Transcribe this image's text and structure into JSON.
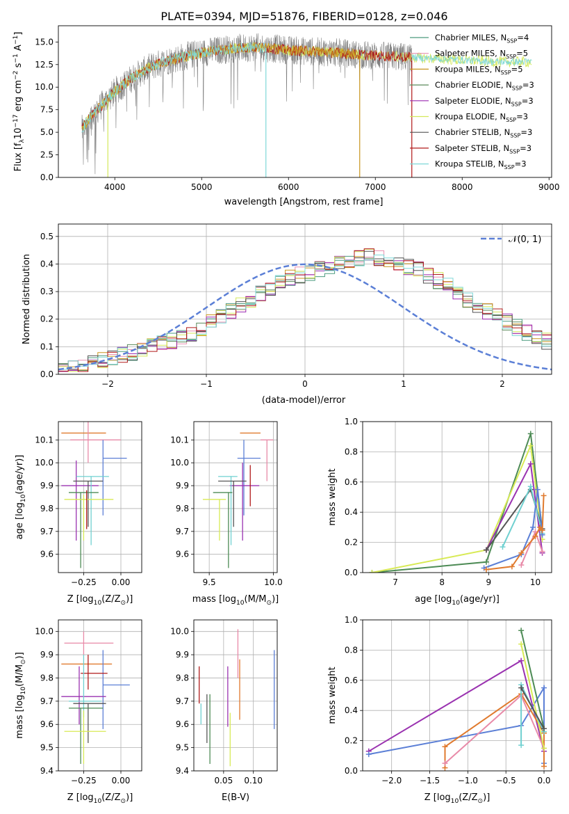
{
  "colors": {
    "Chabrier MILES": "#4a9b7e",
    "Salpeter MILES": "#e88fb0",
    "Kroupa MILES": "#c8951e",
    "Chabrier ELODIE": "#5a8a5a",
    "Salpeter ELODIE": "#9a28b0",
    "Kroupa ELODIE": "#d4e85a",
    "Chabrier STELIB": "#505050",
    "Salpeter STELIB": "#b01818",
    "Kroupa STELIB": "#7fd8d8",
    "data": "#808080",
    "blue": "#5b7fd6",
    "orange": "#e07a2e",
    "green": "#4d8b55",
    "purple": "#9a32b0",
    "yellow": "#d8ea55",
    "cyan": "#6fd0d0",
    "pink": "#e88aa8",
    "red": "#b01a1a",
    "gray": "#555555"
  },
  "chart_data": [
    {
      "type": "line",
      "title": "PLATE=0394, MJD=51876, FIBERID=0128, z=0.046",
      "xlabel": "wavelength [Angstrom, rest frame]",
      "ylabel_parts": [
        "Flux [f",
        "λ",
        "10",
        "−17",
        " erg cm",
        "−2",
        " s",
        "−1",
        " A",
        "−1",
        "]"
      ],
      "xlim": [
        3350,
        9030
      ],
      "ylim": [
        0,
        16.8
      ],
      "xticks": [
        "4000",
        "5000",
        "6000",
        "7000",
        "8000",
        "9000"
      ],
      "yticks": [
        "0.0",
        "2.5",
        "5.0",
        "7.5",
        "10.0",
        "12.5",
        "15.0"
      ],
      "legend_position": "upper right",
      "legend": [
        {
          "text": "Chabrier MILES, N",
          "sub": "SSP",
          "suffix": "=4"
        },
        {
          "text": "Salpeter MILES, N",
          "sub": "SSP",
          "suffix": "=5"
        },
        {
          "text": "Kroupa MILES, N",
          "sub": "SSP",
          "suffix": "=5"
        },
        {
          "text": "Chabrier ELODIE, N",
          "sub": "SSP",
          "suffix": "=3"
        },
        {
          "text": "Salpeter ELODIE, N",
          "sub": "SSP",
          "suffix": "=3"
        },
        {
          "text": "Kroupa ELODIE, N",
          "sub": "SSP",
          "suffix": "=3"
        },
        {
          "text": "Chabrier STELIB, N",
          "sub": "SSP",
          "suffix": "=3"
        },
        {
          "text": "Salpeter STELIB, N",
          "sub": "SSP",
          "suffix": "=3"
        },
        {
          "text": "Kroupa STELIB, N",
          "sub": "SSP",
          "suffix": "=3"
        }
      ],
      "continuum": [
        [
          3600,
          5.0
        ],
        [
          3700,
          6.5
        ],
        [
          3800,
          7.5
        ],
        [
          3900,
          8.5
        ],
        [
          4000,
          9.5
        ],
        [
          4100,
          10.3
        ],
        [
          4200,
          11.0
        ],
        [
          4300,
          11.6
        ],
        [
          4400,
          12.2
        ],
        [
          4600,
          12.9
        ],
        [
          4800,
          13.4
        ],
        [
          5000,
          13.8
        ],
        [
          5200,
          14.1
        ],
        [
          5400,
          14.3
        ],
        [
          5600,
          14.4
        ],
        [
          5800,
          14.3
        ],
        [
          6000,
          14.1
        ],
        [
          6200,
          14.0
        ],
        [
          6400,
          13.9
        ],
        [
          6600,
          13.8
        ],
        [
          6800,
          13.6
        ],
        [
          7000,
          13.5
        ],
        [
          7200,
          13.4
        ],
        [
          7400,
          13.3
        ],
        [
          7600,
          13.2
        ],
        [
          7800,
          13.1
        ],
        [
          8000,
          13.0
        ],
        [
          8200,
          12.9
        ],
        [
          8400,
          12.8
        ],
        [
          8600,
          12.8
        ],
        [
          8800,
          12.8
        ]
      ],
      "data_range": [
        3620,
        7420
      ],
      "model_end": [
        8800,
        7420,
        6820,
        5740,
        3920
      ],
      "drop_lines": [
        [
          3920,
          "Kroupa ELODIE"
        ],
        [
          5740,
          "Kroupa STELIB"
        ],
        [
          6820,
          "Kroupa MILES"
        ],
        [
          7420,
          "Salpeter STELIB"
        ]
      ]
    },
    {
      "type": "histogram",
      "xlabel": "(data-model)/error",
      "ylabel": "Normed distribution",
      "xlim": [
        -2.5,
        2.5
      ],
      "ylim": [
        0,
        0.545
      ],
      "xticks": [
        "−2",
        "−1",
        "0",
        "1",
        "2"
      ],
      "yticks": [
        "0.0",
        "0.1",
        "0.2",
        "0.3",
        "0.4",
        "0.5"
      ],
      "bin_width": 0.1,
      "legend": [
        "𝒩(0, 1)"
      ],
      "base_hist": [
        0.02,
        0.03,
        0.03,
        0.04,
        0.05,
        0.06,
        0.07,
        0.08,
        0.09,
        0.1,
        0.11,
        0.12,
        0.14,
        0.15,
        0.17,
        0.19,
        0.21,
        0.23,
        0.25,
        0.27,
        0.29,
        0.31,
        0.33,
        0.35,
        0.36,
        0.37,
        0.38,
        0.39,
        0.4,
        0.41,
        0.42,
        0.43,
        0.42,
        0.41,
        0.4,
        0.39,
        0.38,
        0.36,
        0.34,
        0.32,
        0.3,
        0.27,
        0.25,
        0.23,
        0.21,
        0.19,
        0.17,
        0.15,
        0.13,
        0.12,
        0.1,
        0.09,
        0.08,
        0.07,
        0.06,
        0.05,
        0.04,
        0.035,
        0.03,
        0.025
      ]
    },
    {
      "type": "errorbar",
      "xlabel_parts": [
        "Z [log",
        "10",
        "(Z/Z",
        "⊙",
        ")]"
      ],
      "ylabel_parts": [
        "age  [log",
        "10",
        "(age/yr)]"
      ],
      "xlim": [
        -0.42,
        0.14
      ],
      "ylim": [
        9.52,
        10.18
      ],
      "xticks": [
        "−0.25",
        "0.00"
      ],
      "yticks": [
        "9.6",
        "9.7",
        "9.8",
        "9.9",
        "10.0",
        "10.1"
      ],
      "points": [
        {
          "c": "orange",
          "x": -0.25,
          "xe": [
            0.15,
            0.15
          ],
          "y": 10.13,
          "ye": [
            0.0,
            0.0
          ]
        },
        {
          "c": "pink",
          "x": -0.22,
          "xe": [
            0.12,
            0.22
          ],
          "y": 10.1,
          "ye": [
            0.1,
            0.1
          ]
        },
        {
          "c": "blue",
          "x": -0.12,
          "xe": [
            0.0,
            0.16
          ],
          "y": 10.02,
          "ye": [
            0.25,
            0.08
          ]
        },
        {
          "c": "purple",
          "x": -0.3,
          "xe": [
            0.1,
            0.15
          ],
          "y": 9.9,
          "ye": [
            0.24,
            0.11
          ]
        },
        {
          "c": "cyan",
          "x": -0.2,
          "xe": [
            0.1,
            0.12
          ],
          "y": 9.94,
          "ye": [
            0.3,
            0.0
          ]
        },
        {
          "c": "gray",
          "x": -0.22,
          "xe": [
            0.1,
            0.1
          ],
          "y": 9.92,
          "ye": [
            0.2,
            0.0
          ]
        },
        {
          "c": "green",
          "x": -0.27,
          "xe": [
            0.08,
            0.12
          ],
          "y": 9.87,
          "ye": [
            0.33,
            0.0
          ]
        },
        {
          "c": "yellow",
          "x": -0.25,
          "xe": [
            0.13,
            0.2
          ],
          "y": 9.84,
          "ye": [
            0.18,
            0.02
          ]
        },
        {
          "c": "red",
          "x": -0.23,
          "xe": [
            0.0,
            0.0
          ],
          "y": 9.8,
          "ye": [
            0.09,
            0.08
          ]
        }
      ]
    },
    {
      "type": "errorbar",
      "xlabel_parts": [
        "mass [log",
        "10",
        "(M/M",
        "⊙",
        ")]"
      ],
      "xlim": [
        9.38,
        10.03
      ],
      "ylim": [
        9.52,
        10.18
      ],
      "xticks": [
        "9.5",
        "10.0"
      ],
      "yticks": [
        "9.6",
        "9.7",
        "9.8",
        "9.9",
        "10.0",
        "10.1"
      ],
      "points": [
        {
          "c": "orange",
          "x": 9.84,
          "xe": [
            0.1,
            0.06
          ],
          "y": 10.13,
          "ye": [
            0.0,
            0.0
          ]
        },
        {
          "c": "pink",
          "x": 9.95,
          "xe": [
            0.05,
            0.05
          ],
          "y": 10.1,
          "ye": [
            0.18,
            0.0
          ]
        },
        {
          "c": "blue",
          "x": 9.77,
          "xe": [
            0.05,
            0.13
          ],
          "y": 10.02,
          "ye": [
            0.25,
            0.08
          ]
        },
        {
          "c": "purple",
          "x": 9.76,
          "xe": [
            0.1,
            0.13
          ],
          "y": 9.9,
          "ye": [
            0.24,
            0.1
          ]
        },
        {
          "c": "cyan",
          "x": 9.67,
          "xe": [
            0.1,
            0.05
          ],
          "y": 9.94,
          "ye": [
            0.3,
            0.0
          ]
        },
        {
          "c": "gray",
          "x": 9.69,
          "xe": [
            0.12,
            0.1
          ],
          "y": 9.92,
          "ye": [
            0.2,
            0.0
          ]
        },
        {
          "c": "green",
          "x": 9.65,
          "xe": [
            0.12,
            0.03
          ],
          "y": 9.87,
          "ye": [
            0.33,
            0.0
          ]
        },
        {
          "c": "yellow",
          "x": 9.58,
          "xe": [
            0.13,
            0.05
          ],
          "y": 9.84,
          "ye": [
            0.18,
            0.0
          ]
        },
        {
          "c": "red",
          "x": 9.82,
          "xe": [
            0.0,
            0.0
          ],
          "y": 9.9,
          "ye": [
            0.09,
            0.09
          ]
        }
      ]
    },
    {
      "type": "line",
      "xlabel_parts": [
        "age  [log",
        "10",
        "(age/yr)]"
      ],
      "ylabel": "mass weight",
      "xlim": [
        6.3,
        10.35
      ],
      "ylim": [
        0,
        1.0
      ],
      "xticks": [
        "7",
        "8",
        "9",
        "10"
      ],
      "yticks": [
        "0.0",
        "0.2",
        "0.4",
        "0.6",
        "0.8",
        "1.0"
      ],
      "series": [
        {
          "c": "green",
          "x": [
            6.5,
            8.95,
            9.9,
            10.15
          ],
          "y": [
            0.0,
            0.07,
            0.92,
            0.28
          ]
        },
        {
          "c": "yellow",
          "x": [
            6.5,
            8.95,
            9.9,
            10.15
          ],
          "y": [
            0.0,
            0.15,
            0.84,
            0.22
          ]
        },
        {
          "c": "purple",
          "x": [
            8.95,
            9.9,
            10.15
          ],
          "y": [
            0.15,
            0.72,
            0.13
          ]
        },
        {
          "c": "gray",
          "x": [
            8.95,
            9.9,
            10.15
          ],
          "y": [
            0.15,
            0.55,
            0.29
          ]
        },
        {
          "c": "cyan",
          "x": [
            9.3,
            9.9,
            10.15
          ],
          "y": [
            0.17,
            0.57,
            0.26
          ]
        },
        {
          "c": "blue",
          "x": [
            8.9,
            9.7,
            9.95,
            10.05,
            10.15
          ],
          "y": [
            0.03,
            0.12,
            0.3,
            0.55,
            0.25
          ]
        },
        {
          "c": "pink",
          "x": [
            9.7,
            10.0,
            10.15
          ],
          "y": [
            0.05,
            0.27,
            0.14
          ]
        },
        {
          "c": "orange",
          "x": [
            8.95,
            9.5,
            9.7,
            10.0,
            10.1,
            10.15,
            10.18
          ],
          "y": [
            0.02,
            0.04,
            0.13,
            0.24,
            0.3,
            0.28,
            0.51
          ]
        }
      ]
    },
    {
      "type": "errorbar",
      "xlabel_parts": [
        "Z [log",
        "10",
        "(Z/Z",
        "⊙",
        ")]"
      ],
      "ylabel_parts": [
        "mass [log",
        "10",
        "(M/M",
        "⊙",
        ")]"
      ],
      "xlim": [
        -0.42,
        0.14
      ],
      "ylim": [
        9.4,
        10.05
      ],
      "xticks": [
        "−0.25",
        "0.00"
      ],
      "yticks": [
        "9.4",
        "9.5",
        "9.6",
        "9.7",
        "9.8",
        "9.9",
        "10.0"
      ],
      "points": [
        {
          "c": "pink",
          "x": -0.25,
          "xe": [
            0.13,
            0.2
          ],
          "y": 9.95,
          "ye": [
            0.05,
            0.05
          ]
        },
        {
          "c": "orange",
          "x": -0.22,
          "xe": [
            0.18,
            0.16
          ],
          "y": 9.86,
          "ye": [
            0.0,
            0.0
          ]
        },
        {
          "c": "blue",
          "x": -0.12,
          "xe": [
            0.0,
            0.18
          ],
          "y": 9.77,
          "ye": [
            0.19,
            0.15
          ]
        },
        {
          "c": "red",
          "x": -0.22,
          "xe": [
            0.05,
            0.13
          ],
          "y": 9.82,
          "ye": [
            0.07,
            0.08
          ]
        },
        {
          "c": "purple",
          "x": -0.28,
          "xe": [
            0.12,
            0.18
          ],
          "y": 9.72,
          "ye": [
            0.12,
            0.13
          ]
        },
        {
          "c": "cyan",
          "x": -0.25,
          "xe": [
            0.1,
            0.12
          ],
          "y": 9.7,
          "ye": [
            0.07,
            0.2
          ]
        },
        {
          "c": "gray",
          "x": -0.22,
          "xe": [
            0.1,
            0.12
          ],
          "y": 9.69,
          "ye": [
            0.17,
            0.0
          ]
        },
        {
          "c": "green",
          "x": -0.27,
          "xe": [
            0.08,
            0.15
          ],
          "y": 9.67,
          "ye": [
            0.24,
            0.0
          ]
        },
        {
          "c": "yellow",
          "x": -0.25,
          "xe": [
            0.13,
            0.15
          ],
          "y": 9.57,
          "ye": [
            0.14,
            0.09
          ]
        }
      ]
    },
    {
      "type": "errorbar",
      "xlabel": "E(B-V)",
      "xlim": [
        0.0,
        0.14
      ],
      "ylim": [
        9.4,
        10.05
      ],
      "xticks": [
        "0.05",
        "0.10"
      ],
      "yticks": [
        "9.4",
        "9.5",
        "9.6",
        "9.7",
        "9.8",
        "9.9",
        "10.0"
      ],
      "points": [
        {
          "c": "red",
          "x": 0.009,
          "y": 9.77,
          "ye": [
            0.08,
            0.08
          ]
        },
        {
          "c": "cyan",
          "x": 0.012,
          "y": 9.69,
          "ye": [
            0.09,
            0.0
          ]
        },
        {
          "c": "gray",
          "x": 0.022,
          "y": 9.64,
          "ye": [
            0.12,
            0.09
          ]
        },
        {
          "c": "green",
          "x": 0.027,
          "y": 9.59,
          "ye": [
            0.16,
            0.14
          ]
        },
        {
          "c": "purple",
          "x": 0.057,
          "y": 9.72,
          "ye": [
            0.13,
            0.13
          ]
        },
        {
          "c": "yellow",
          "x": 0.061,
          "y": 9.55,
          "ye": [
            0.13,
            0.1
          ]
        },
        {
          "c": "pink",
          "x": 0.074,
          "y": 9.9,
          "ye": [
            0.1,
            0.11
          ]
        },
        {
          "c": "orange",
          "x": 0.077,
          "y": 9.75,
          "ye": [
            0.13,
            0.13
          ]
        },
        {
          "c": "blue",
          "x": 0.135,
          "y": 9.76,
          "ye": [
            0.18,
            0.16
          ]
        }
      ]
    },
    {
      "type": "line",
      "xlabel_parts": [
        "Z [log",
        "10",
        "(Z/Z",
        "⊙",
        ")]"
      ],
      "ylabel": "mass weight",
      "xlim": [
        -2.38,
        0.1
      ],
      "ylim": [
        0,
        1.0
      ],
      "xticks": [
        "−2.0",
        "−1.5",
        "−1.0",
        "−0.5",
        "0.0"
      ],
      "yticks": [
        "0.0",
        "0.2",
        "0.4",
        "0.6",
        "0.8",
        "1.0"
      ],
      "series": [
        {
          "c": "purple",
          "x": [
            -2.3,
            -0.3,
            0.0
          ],
          "y": [
            0.13,
            0.73,
            0.13
          ]
        },
        {
          "c": "blue",
          "x": [
            -2.3,
            -0.3,
            0.0,
            0.0
          ],
          "y": [
            0.11,
            0.3,
            0.55,
            0.05
          ]
        },
        {
          "c": "orange",
          "x": [
            -1.3,
            -1.3,
            -0.3,
            0.0,
            0.0
          ],
          "y": [
            0.02,
            0.16,
            0.51,
            0.25,
            0.03
          ]
        },
        {
          "c": "pink",
          "x": [
            -1.3,
            -0.3,
            0.0
          ],
          "y": [
            0.05,
            0.5,
            0.15
          ]
        },
        {
          "c": "green",
          "x": [
            -0.3,
            0.0
          ],
          "y": [
            0.93,
            0.28
          ]
        },
        {
          "c": "yellow",
          "x": [
            -0.3,
            0.0
          ],
          "y": [
            0.84,
            0.15
          ]
        },
        {
          "c": "cyan",
          "x": [
            -0.3,
            -0.3,
            0.0
          ],
          "y": [
            0.17,
            0.57,
            0.26
          ]
        },
        {
          "c": "gray",
          "x": [
            -0.3,
            0.0
          ],
          "y": [
            0.55,
            0.28
          ]
        }
      ]
    }
  ]
}
